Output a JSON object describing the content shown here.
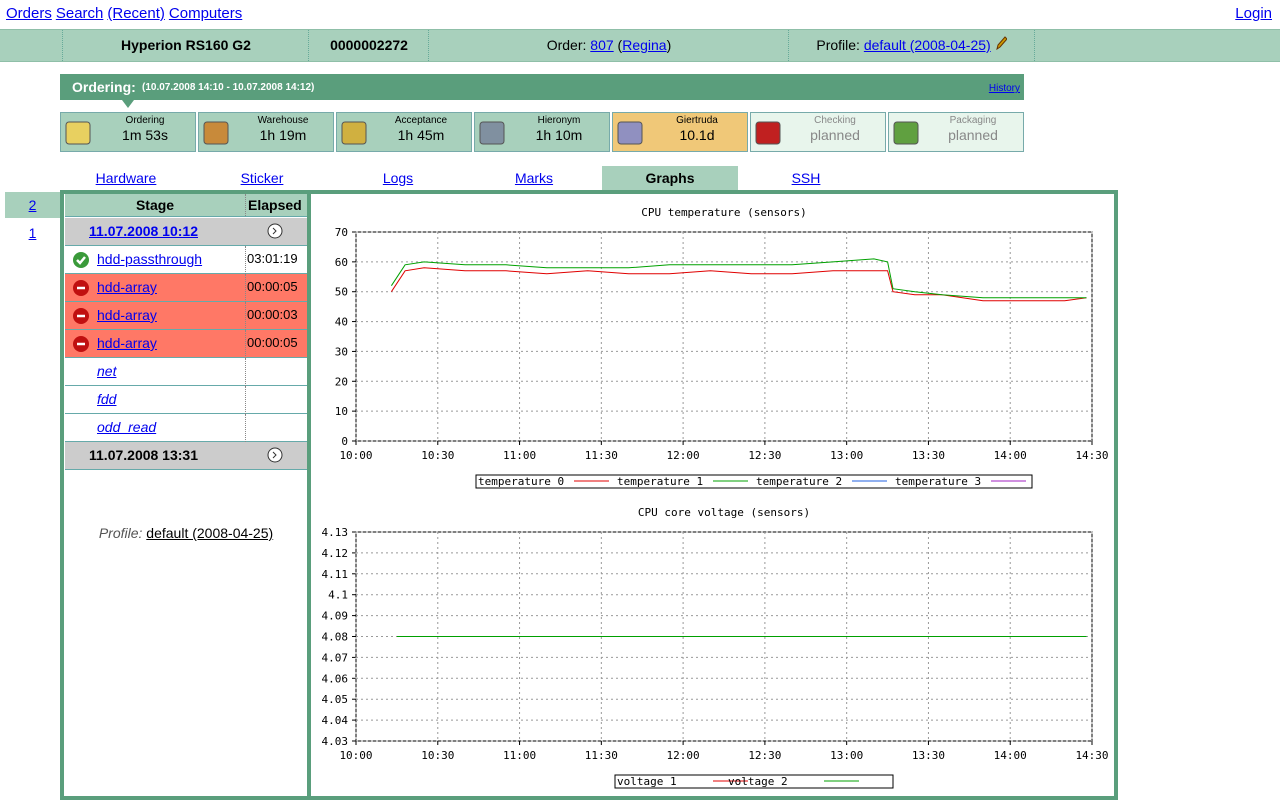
{
  "nav": {
    "left": [
      "Orders",
      "Search",
      "(Recent)",
      "Computers"
    ],
    "right": "Login"
  },
  "header": {
    "model": "Hyperion RS160 G2",
    "serial": "0000002272",
    "order_label": "Order:",
    "order": "807",
    "customer_open": "(",
    "customer": "Regina",
    "customer_close": ")",
    "profile_label": "Profile:",
    "profile": "default (2008-04-25)"
  },
  "ordering": {
    "title": "Ordering:",
    "range": "(10.07.2008 14:10 - 10.07.2008 14:12)",
    "history": "History"
  },
  "stages": [
    {
      "name": "Ordering",
      "time": "1m 53s",
      "state": "done"
    },
    {
      "name": "Warehouse",
      "time": "1h 19m",
      "state": "done"
    },
    {
      "name": "Acceptance",
      "time": "1h 45m",
      "state": "done"
    },
    {
      "name": "Hieronym",
      "time": "1h 10m",
      "state": "done"
    },
    {
      "name": "Giertruda",
      "time": "10.1d",
      "state": "active"
    },
    {
      "name": "Checking",
      "time": "planned",
      "state": "planned"
    },
    {
      "name": "Packaging",
      "time": "planned",
      "state": "planned"
    }
  ],
  "tabs": {
    "items": [
      "Hardware",
      "Sticker",
      "Logs",
      "Marks",
      "Graphs",
      "SSH"
    ],
    "active": 4
  },
  "runs": {
    "items": [
      "2",
      "1"
    ],
    "active": 0
  },
  "stage_table": {
    "headers": [
      "Stage",
      "Elapsed"
    ],
    "start": "11.07.2008 10:12",
    "rows": [
      {
        "name": "hdd-passthrough",
        "elapsed": "03:01:19",
        "status": "ok"
      },
      {
        "name": "hdd-array",
        "elapsed": "00:00:05",
        "status": "fail"
      },
      {
        "name": "hdd-array",
        "elapsed": "00:00:03",
        "status": "fail"
      },
      {
        "name": "hdd-array",
        "elapsed": "00:00:05",
        "status": "fail"
      },
      {
        "name": "net",
        "elapsed": null,
        "status": "none"
      },
      {
        "name": "fdd",
        "elapsed": null,
        "status": "none"
      },
      {
        "name": "odd_read",
        "elapsed": null,
        "status": "none"
      }
    ],
    "end": "11.07.2008 13:31",
    "profile_label": "Profile:",
    "profile": "default (2008-04-25)"
  },
  "chart_data": [
    {
      "type": "line",
      "title": "CPU temperature (sensors)",
      "x": [
        613,
        618,
        625,
        640,
        655,
        670,
        685,
        700,
        715,
        730,
        745,
        760,
        775,
        790,
        795,
        797,
        805,
        815,
        830,
        845,
        860,
        868
      ],
      "series": [
        {
          "name": "temperature 0",
          "color": "#e00000",
          "values": [
            50,
            57,
            58,
            57,
            57,
            56,
            57,
            56,
            56,
            57,
            56,
            56,
            57,
            57,
            57,
            50,
            49,
            49,
            47,
            47,
            47,
            48
          ]
        },
        {
          "name": "temperature 1",
          "color": "#00a000",
          "values": [
            52,
            59,
            60,
            59,
            59,
            58,
            58,
            58,
            59,
            59,
            59,
            59,
            60,
            61,
            60,
            51,
            50,
            49,
            48,
            48,
            48,
            48
          ]
        },
        {
          "name": "temperature 2",
          "color": "#2060e0",
          "values": [
            null,
            null,
            null,
            null,
            null,
            null,
            null,
            null,
            null,
            null,
            null,
            null,
            null,
            null,
            null,
            null,
            null,
            null,
            null,
            null,
            null,
            null
          ]
        },
        {
          "name": "temperature 3",
          "color": "#a020c0",
          "values": [
            null,
            null,
            null,
            null,
            null,
            null,
            null,
            null,
            null,
            null,
            null,
            null,
            null,
            null,
            null,
            null,
            null,
            null,
            null,
            null,
            null,
            null
          ]
        }
      ],
      "xlim": [
        600,
        870
      ],
      "xticks": [
        {
          "value": 600,
          "label": "10:00"
        },
        {
          "value": 630,
          "label": "10:30"
        },
        {
          "value": 660,
          "label": "11:00"
        },
        {
          "value": 690,
          "label": "11:30"
        },
        {
          "value": 720,
          "label": "12:00"
        },
        {
          "value": 750,
          "label": "12:30"
        },
        {
          "value": 780,
          "label": "13:00"
        },
        {
          "value": 810,
          "label": "13:30"
        },
        {
          "value": 840,
          "label": "14:00"
        },
        {
          "value": 870,
          "label": "14:30"
        }
      ],
      "ylim": [
        0,
        70
      ],
      "yticks": [
        0,
        10,
        20,
        30,
        40,
        50,
        60,
        70
      ],
      "grid": true
    },
    {
      "type": "line",
      "title": "CPU core voltage (sensors)",
      "x": [
        615,
        868
      ],
      "series": [
        {
          "name": "voltage 1",
          "color": "#e00000",
          "values": [
            4.08,
            4.08
          ]
        },
        {
          "name": "voltage 2",
          "color": "#00a000",
          "values": [
            4.08,
            4.08
          ]
        }
      ],
      "xlim": [
        600,
        870
      ],
      "xticks": [
        {
          "value": 600,
          "label": "10:00"
        },
        {
          "value": 630,
          "label": "10:30"
        },
        {
          "value": 660,
          "label": "11:00"
        },
        {
          "value": 690,
          "label": "11:30"
        },
        {
          "value": 720,
          "label": "12:00"
        },
        {
          "value": 750,
          "label": "12:30"
        },
        {
          "value": 780,
          "label": "13:00"
        },
        {
          "value": 810,
          "label": "13:30"
        },
        {
          "value": 840,
          "label": "14:00"
        },
        {
          "value": 870,
          "label": "14:30"
        }
      ],
      "ylim": [
        4.03,
        4.13
      ],
      "yticks": [
        4.03,
        4.04,
        4.05,
        4.06,
        4.07,
        4.08,
        4.09,
        4.1,
        4.11,
        4.12,
        4.13
      ],
      "grid": true
    }
  ]
}
